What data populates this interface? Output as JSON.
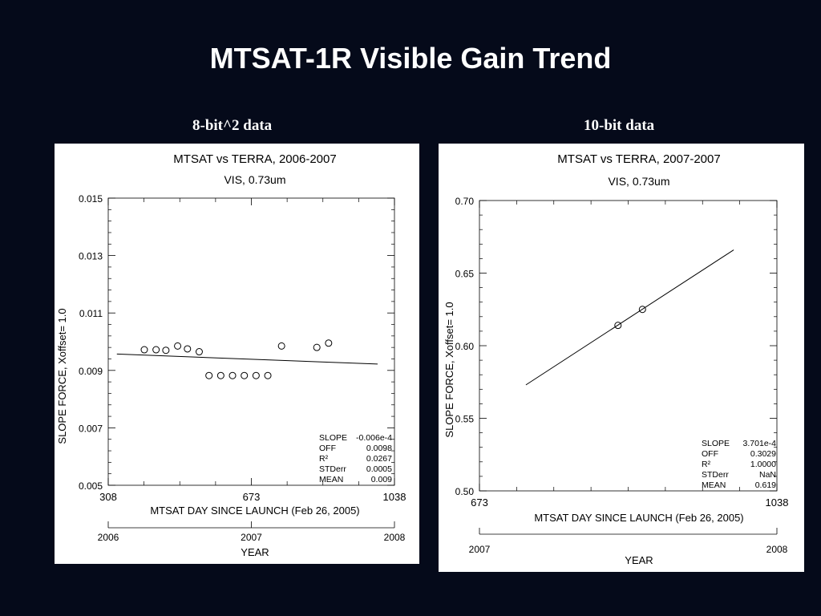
{
  "slide": {
    "title": "MTSAT-1R Visible Gain Trend",
    "left_subtitle": "8-bit^2 data",
    "right_subtitle": "10-bit data",
    "background": "#050a1a"
  },
  "chart_data": [
    {
      "type": "scatter",
      "title": "MTSAT vs TERRA, 2006-2007",
      "subtitle": "VIS, 0.73um",
      "xlabel": "MTSAT DAY SINCE LAUNCH (Feb 26, 2005)",
      "ylabel": "SLOPE FORCE, Xoffset=     1.0",
      "xlim": [
        308,
        1038
      ],
      "ylim": [
        0.005,
        0.015
      ],
      "xticks": [
        "308",
        "673",
        "1038"
      ],
      "yticks": [
        "0.015",
        "0.013",
        "0.011",
        "0.009",
        "0.007",
        "0.005"
      ],
      "year_axis": {
        "label": "YEAR",
        "ticks": [
          "2006",
          "2007",
          "2008"
        ]
      },
      "points": [
        {
          "x": 400,
          "y": 0.00972
        },
        {
          "x": 430,
          "y": 0.00972
        },
        {
          "x": 455,
          "y": 0.0097
        },
        {
          "x": 485,
          "y": 0.00985
        },
        {
          "x": 510,
          "y": 0.00975
        },
        {
          "x": 540,
          "y": 0.00965
        },
        {
          "x": 565,
          "y": 0.00882
        },
        {
          "x": 595,
          "y": 0.00882
        },
        {
          "x": 625,
          "y": 0.00882
        },
        {
          "x": 655,
          "y": 0.00882
        },
        {
          "x": 685,
          "y": 0.00882
        },
        {
          "x": 715,
          "y": 0.00882
        },
        {
          "x": 750,
          "y": 0.00985
        },
        {
          "x": 840,
          "y": 0.0098
        },
        {
          "x": 870,
          "y": 0.00995
        }
      ],
      "fit_line": [
        {
          "x": 330,
          "y": 0.00957
        },
        {
          "x": 995,
          "y": 0.00922
        }
      ],
      "stats": [
        {
          "label": "SLOPE",
          "value": "-0.006e-4"
        },
        {
          "label": "OFF",
          "value": "0.0098"
        },
        {
          "label": "R²",
          "value": "0.0267"
        },
        {
          "label": "STDerr",
          "value": "0.0005"
        },
        {
          "label": "MEAN",
          "value": "0.009"
        }
      ]
    },
    {
      "type": "scatter",
      "title": "MTSAT vs TERRA, 2007-2007",
      "subtitle": "VIS, 0.73um",
      "xlabel": "MTSAT DAY SINCE LAUNCH (Feb 26, 2005)",
      "ylabel": "SLOPE FORCE, Xoffset=     1.0",
      "xlim": [
        673,
        1038
      ],
      "ylim": [
        0.5,
        0.7
      ],
      "xticks": [
        "673",
        "1038"
      ],
      "yticks": [
        "0.70",
        "0.65",
        "0.60",
        "0.55",
        "0.50"
      ],
      "year_axis": {
        "label": "YEAR",
        "ticks": [
          "2007",
          "2008"
        ]
      },
      "points": [
        {
          "x": 843,
          "y": 0.614
        },
        {
          "x": 873,
          "y": 0.625
        }
      ],
      "fit_line": [
        {
          "x": 730,
          "y": 0.573
        },
        {
          "x": 985,
          "y": 0.666
        }
      ],
      "stats": [
        {
          "label": "SLOPE",
          "value": "3.701e-4"
        },
        {
          "label": "OFF",
          "value": "0.3029"
        },
        {
          "label": "R²",
          "value": "1.0000"
        },
        {
          "label": "STDerr",
          "value": "NaN"
        },
        {
          "label": "MEAN",
          "value": "0.619"
        }
      ]
    }
  ]
}
